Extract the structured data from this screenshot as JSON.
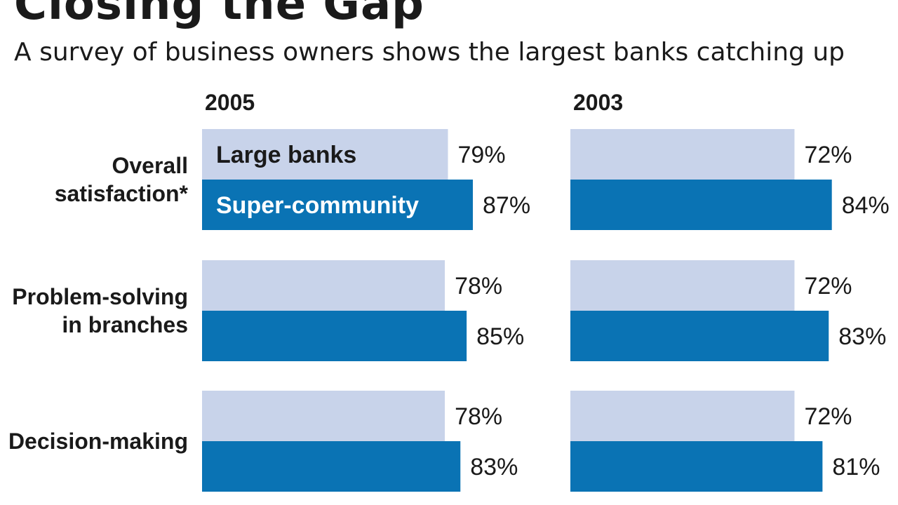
{
  "title": "Closing the Gap",
  "subtitle": "A survey of business owners shows the largest banks catching up",
  "colors": {
    "large_banks": "#c8d3ea",
    "super_community": "#0a73b4",
    "text": "#1a1a1a"
  },
  "chart_data": {
    "type": "bar",
    "orientation": "horizontal",
    "categories": [
      [
        "Overall",
        "satisfaction*"
      ],
      [
        "Problem-solving",
        "in branches"
      ],
      [
        "Decision-making"
      ]
    ],
    "series_legend": [
      "Large banks",
      "Super-community"
    ],
    "panels": [
      {
        "title": "2005",
        "series": [
          {
            "name": "Large banks",
            "values": [
              79,
              78,
              78
            ]
          },
          {
            "name": "Super-community",
            "values": [
              87,
              85,
              83
            ]
          }
        ]
      },
      {
        "title": "2003",
        "series": [
          {
            "name": "Large banks",
            "values": [
              72,
              72,
              72
            ]
          },
          {
            "name": "Super-community",
            "values": [
              84,
              83,
              81
            ]
          }
        ]
      }
    ],
    "value_suffix": "%",
    "legend_placement": "inside first bars of 2005 panel",
    "grid": false
  }
}
